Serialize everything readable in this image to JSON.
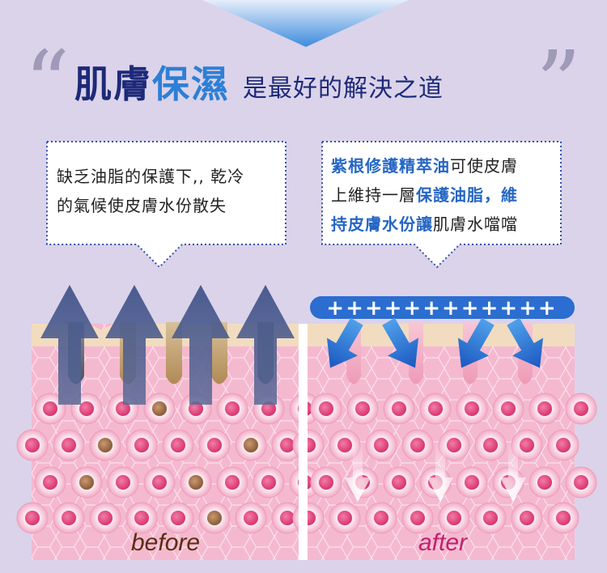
{
  "headline": {
    "part1": "肌膚",
    "part2": "保濕",
    "part3": "是最好的解決之道",
    "open_quote": "“",
    "close_quote": "”"
  },
  "bubble_left": {
    "line1": "缺乏油脂的保護下,, 乾冷",
    "line2": "的氣候使皮膚水份散失"
  },
  "bubble_right": {
    "seg1": "紫根修護精萃油",
    "seg2": "可使皮膚",
    "seg3": "上維持一層",
    "seg4": "保護油脂，維",
    "seg5": "持皮膚水份讓",
    "seg6": "肌膚水噹噹"
  },
  "plus_bar": "++++++++++++",
  "labels": {
    "before": "before",
    "after": "after"
  },
  "colors": {
    "background": "#dbd3ea",
    "headline_dark": "#1d2a78",
    "headline_accent": "#2d7fd6",
    "accent_blue": "#2566c4",
    "before_label": "#5b2d12",
    "after_label": "#c41f6e",
    "skin_pink": "#f4b9cf",
    "skin_top": "#f2dcc0"
  }
}
